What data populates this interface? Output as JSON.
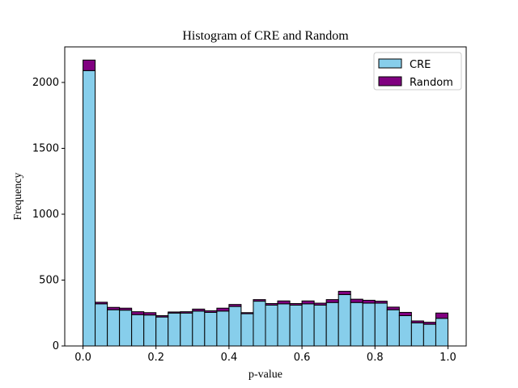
{
  "chart_data": {
    "type": "bar",
    "stacked": true,
    "title": "Histogram of CRE and Random",
    "xlabel": "p-value",
    "ylabel": "Frequency",
    "xlim": [
      -0.05,
      1.05
    ],
    "ylim": [
      0,
      2270
    ],
    "xticks": [
      "0.0",
      "0.2",
      "0.4",
      "0.6",
      "0.8",
      "1.0"
    ],
    "yticks": [
      "0",
      "500",
      "1000",
      "1500",
      "2000"
    ],
    "bin_edges": [
      0.0,
      0.0333,
      0.0667,
      0.1,
      0.1333,
      0.1667,
      0.2,
      0.2333,
      0.2667,
      0.3,
      0.3333,
      0.3667,
      0.4,
      0.4333,
      0.4667,
      0.5,
      0.5333,
      0.5667,
      0.6,
      0.6333,
      0.6667,
      0.7,
      0.7333,
      0.7667,
      0.8,
      0.8333,
      0.8667,
      0.9,
      0.9333,
      0.9667,
      1.0
    ],
    "series": [
      {
        "name": "CRE",
        "color": "#87ceeb",
        "values": [
          2090,
          320,
          275,
          272,
          238,
          235,
          220,
          250,
          250,
          265,
          255,
          265,
          300,
          245,
          340,
          310,
          320,
          310,
          320,
          310,
          330,
          390,
          330,
          325,
          325,
          275,
          230,
          175,
          165,
          210
        ]
      },
      {
        "name": "Random",
        "color": "#800080",
        "values": [
          80,
          12,
          18,
          15,
          22,
          18,
          10,
          8,
          10,
          15,
          12,
          22,
          15,
          8,
          12,
          12,
          22,
          12,
          22,
          15,
          22,
          25,
          25,
          22,
          15,
          20,
          25,
          15,
          15,
          40
        ]
      }
    ],
    "legend": {
      "position": "top-right"
    },
    "grid": false,
    "edgecolor": "#000000"
  }
}
